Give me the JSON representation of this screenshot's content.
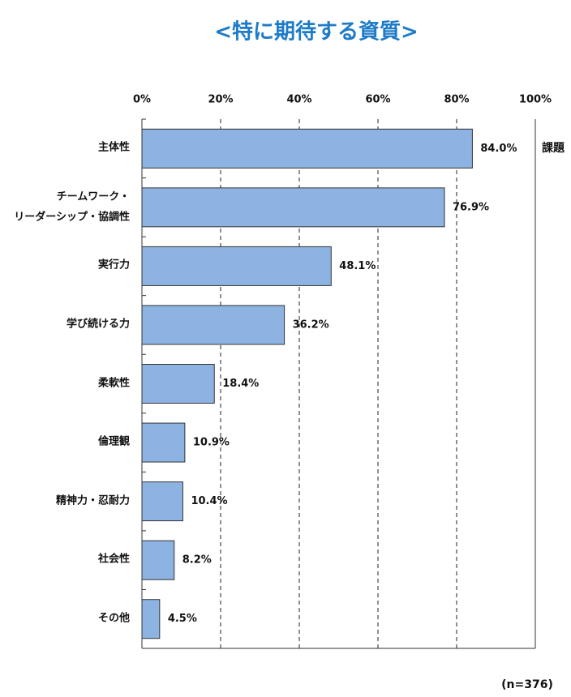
{
  "chart_data": {
    "type": "bar",
    "orientation": "horizontal",
    "title": "<特に期待する資質>",
    "categories": [
      "主体性",
      "チームワーク・\nリーダーシップ・協調性",
      "実行力",
      "学び続ける力",
      "柔軟性",
      "倫理観",
      "精神力・忍耐力",
      "社会性",
      "その他"
    ],
    "values": [
      84.0,
      76.9,
      48.1,
      36.2,
      18.4,
      10.9,
      10.4,
      8.2,
      4.5
    ],
    "value_labels": [
      "84.0%",
      "76.9%",
      "48.1%",
      "36.2%",
      "18.4%",
      "10.9%",
      "10.4%",
      "8.2%",
      "4.5%"
    ],
    "color": "#8db3e2",
    "xlim": [
      0,
      100
    ],
    "xticks": [
      {
        "value": 0,
        "label": "0%"
      },
      {
        "value": 20,
        "label": "20%"
      },
      {
        "value": 40,
        "label": "40%"
      },
      {
        "value": 60,
        "label": "60%"
      },
      {
        "value": 80,
        "label": "80%"
      },
      {
        "value": 100,
        "label": "100%"
      }
    ],
    "grid": true,
    "note": "(n=376)",
    "side_text": "課題"
  }
}
